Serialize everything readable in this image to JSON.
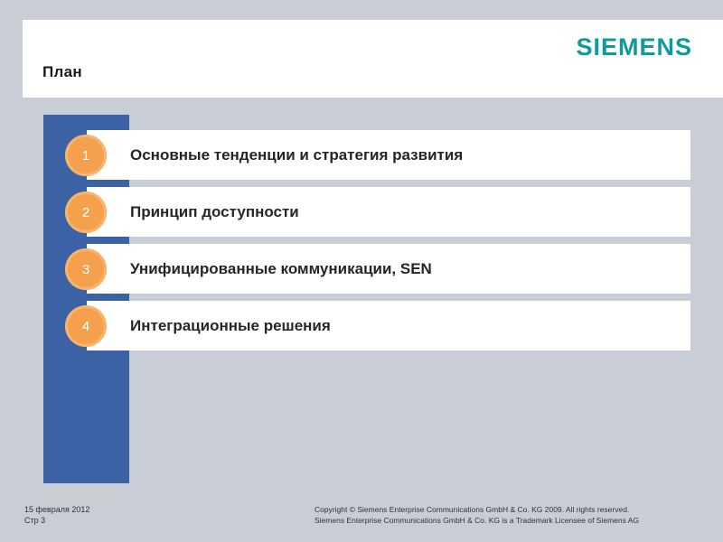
{
  "header": {
    "title": "План",
    "logo": "SIEMENS"
  },
  "agenda": {
    "items": [
      {
        "number": "1",
        "label": "Основные тенденции и стратегия развития"
      },
      {
        "number": "2",
        "label": "Принцип доступности"
      },
      {
        "number": "3",
        "label": "Унифицированные коммуникации, SEN"
      },
      {
        "number": "4",
        "label": "Интеграционные решения"
      }
    ]
  },
  "footer": {
    "date": "15 февраля 2012",
    "page": "Стр 3",
    "copyright_line1": "Copyright © Siemens Enterprise Communications GmbH & Co. KG 2009. All rights reserved.",
    "copyright_line2": "Siemens Enterprise Communications GmbH & Co. KG is a Trademark Licensee of Siemens AG"
  },
  "colors": {
    "accent_blue": "#3c62a6",
    "bullet_orange": "#f5a04d",
    "logo_teal": "#0f9b9b",
    "background": "#c9cdd6"
  }
}
